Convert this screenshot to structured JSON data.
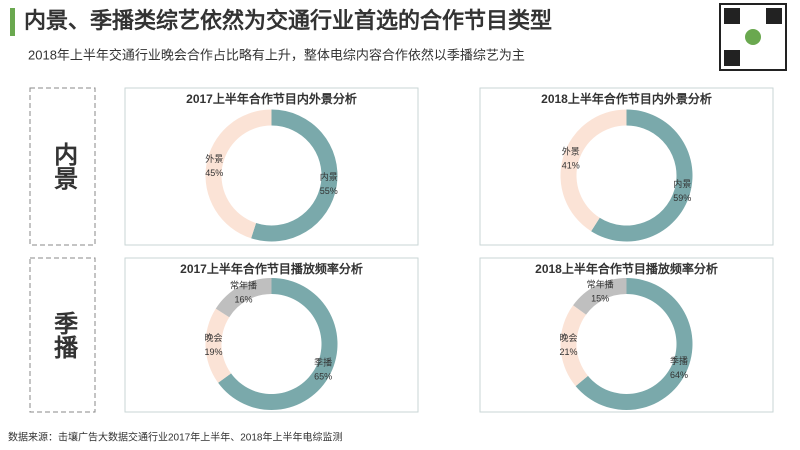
{
  "title": "内景、季播类综艺依然为交通行业首选的合作节目类型",
  "subtitle": "2018年上半年交通行业晚会合作占比略有上升，整体电综内容合作依然以季播综艺为主",
  "row_labels": [
    "内景",
    "季播"
  ],
  "source": "数据来源：击壤广告大数据交通行业2017年上半年、2018年上半年电综监测",
  "chart_data": [
    {
      "type": "pie",
      "title": "2017上半年合作节目内外景分析",
      "categories": [
        "内景",
        "外景"
      ],
      "values": [
        55,
        45
      ],
      "value_labels": [
        "55%",
        "45%"
      ],
      "colors": [
        "#7aa9ab",
        "#fbe3d6"
      ]
    },
    {
      "type": "pie",
      "title": "2018上半年合作节目内外景分析",
      "categories": [
        "内景",
        "外景"
      ],
      "values": [
        59,
        41
      ],
      "value_labels": [
        "59%",
        "41%"
      ],
      "colors": [
        "#7aa9ab",
        "#fbe3d6"
      ]
    },
    {
      "type": "pie",
      "title": "2017上半年合作节目播放频率分析",
      "categories": [
        "季播",
        "晚会",
        "常年播"
      ],
      "values": [
        65,
        19,
        16
      ],
      "value_labels": [
        "65%",
        "19%",
        "16%"
      ],
      "colors": [
        "#7aa9ab",
        "#fbe3d6",
        "#bfbfbf"
      ]
    },
    {
      "type": "pie",
      "title": "2018上半年合作节目播放频率分析",
      "categories": [
        "季播",
        "晚会",
        "常年播"
      ],
      "values": [
        64,
        21,
        15
      ],
      "value_labels": [
        "64%",
        "21%",
        "15%"
      ],
      "colors": [
        "#7aa9ab",
        "#fbe3d6",
        "#bfbfbf"
      ]
    }
  ]
}
